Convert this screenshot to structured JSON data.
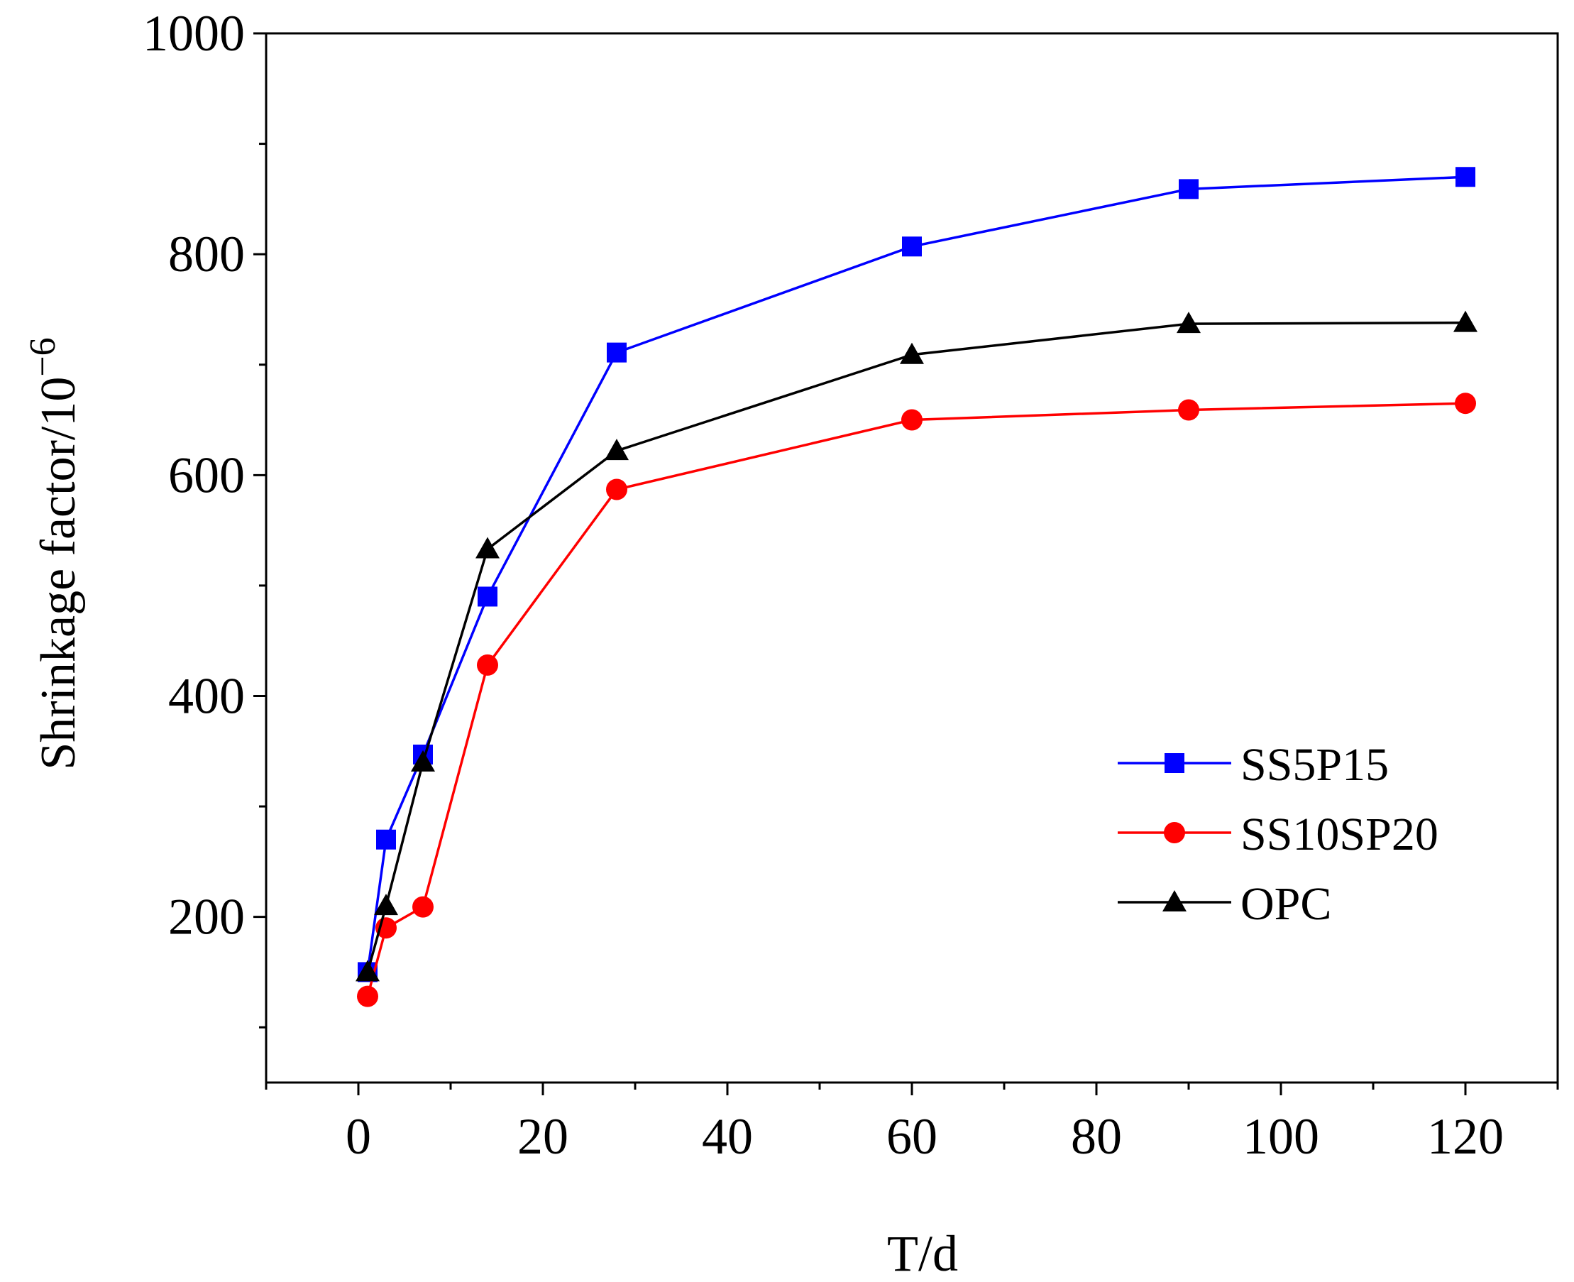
{
  "chart_data": {
    "type": "line",
    "title": "",
    "xlabel": "T/d",
    "ylabel_base": "Shrinkage factor/10",
    "ylabel_exponent": "−6",
    "xlim": [
      -10,
      130
    ],
    "ylim": [
      50,
      1000
    ],
    "x_ticks": [
      0,
      20,
      40,
      60,
      80,
      100,
      120
    ],
    "x_tick_labels": [
      "0",
      "20",
      "40",
      "60",
      "80",
      "100",
      "120"
    ],
    "x_minor_ticks": [
      -10,
      10,
      30,
      50,
      70,
      90,
      110,
      130
    ],
    "y_ticks": [
      200,
      400,
      600,
      800,
      1000
    ],
    "y_tick_labels": [
      "200",
      "400",
      "600",
      "800",
      "1000"
    ],
    "y_minor_ticks": [
      100,
      300,
      500,
      700,
      900
    ],
    "x": [
      1,
      3,
      7,
      14,
      28,
      60,
      90,
      120
    ],
    "grid": false,
    "legend_position": "lower-right",
    "series": [
      {
        "name": "SS5P15",
        "color": "#0000ff",
        "marker": "square",
        "values": [
          150,
          270,
          347,
          490,
          711,
          807,
          859,
          870
        ]
      },
      {
        "name": "SS10SP20",
        "color": "#ff0000",
        "marker": "circle",
        "values": [
          128,
          190,
          209,
          428,
          587,
          650,
          659,
          665
        ]
      },
      {
        "name": "OPC",
        "color": "#000000",
        "marker": "triangle",
        "values": [
          150,
          210,
          340,
          533,
          622,
          709,
          737,
          738
        ]
      }
    ]
  }
}
